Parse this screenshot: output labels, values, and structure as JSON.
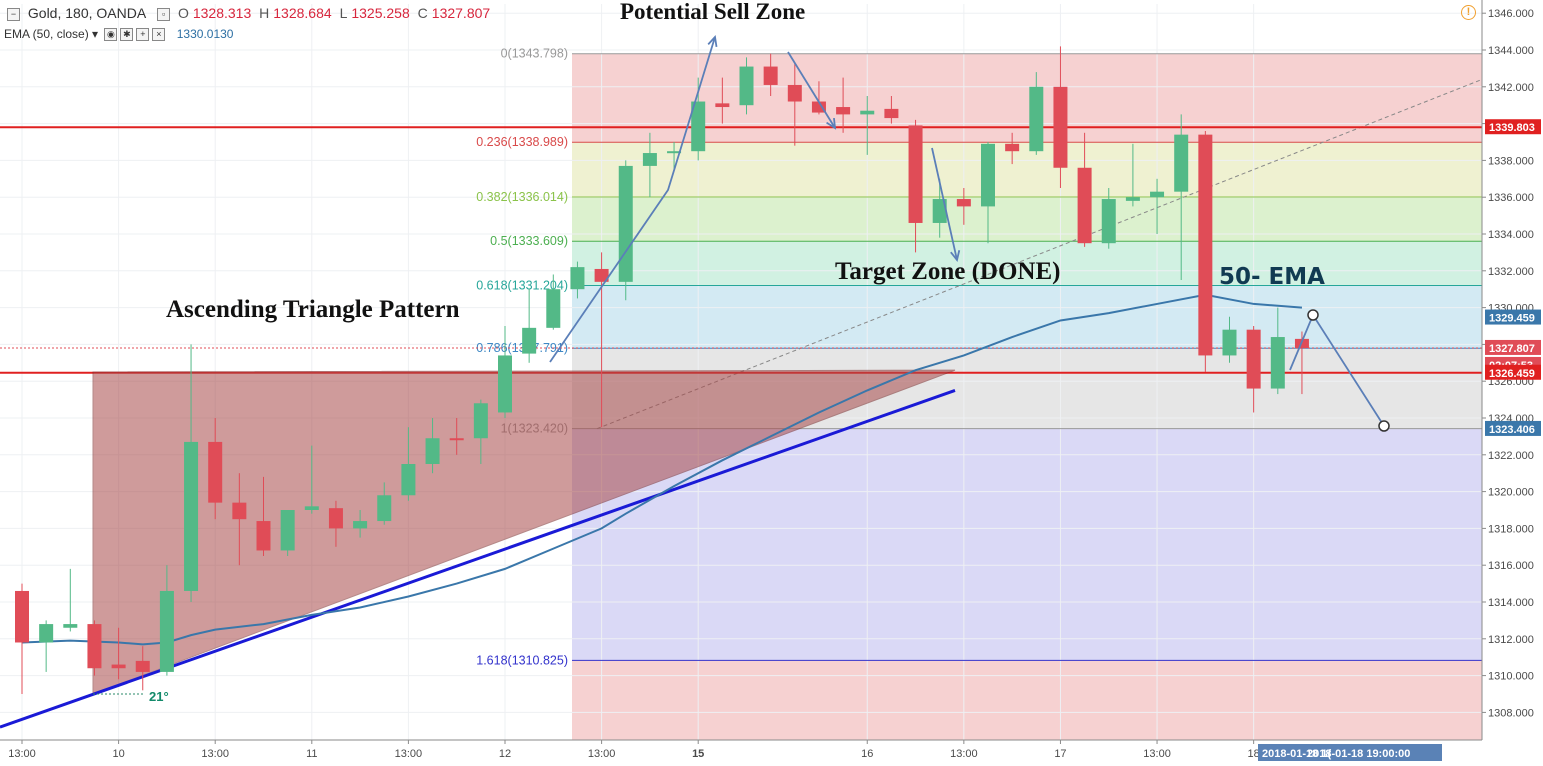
{
  "header": {
    "symbol": "Gold, 180, OANDA",
    "o_label": "O",
    "o": "1328.313",
    "h_label": "H",
    "h": "1328.684",
    "l_label": "L",
    "l": "1325.258",
    "c_label": "C",
    "c": "1327.807",
    "ema_label": "EMA (50, close)",
    "ema_value": "1330.0130"
  },
  "icons": [
    "collapse-icon",
    "settings-icon",
    "eye-icon",
    "plus-icon",
    "close-icon",
    "alert-icon"
  ],
  "colors": {
    "bull": "#53b987",
    "bear": "#e04c57",
    "ema": "#3a77aa",
    "trend": "#1a1ad6",
    "hline": "#e02020",
    "triangle": "#a84a4a",
    "fib_text": "#555555"
  },
  "annotations": {
    "potential_sell": "Potential Sell Zone",
    "target_zone": "Target Zone (DONE)",
    "ema50": "50- EMA",
    "ascending": "Ascending Triangle Pattern",
    "angle": "21°"
  },
  "chart_data": {
    "type": "candlestick",
    "symbol": "Gold, 180, OANDA",
    "ylim": [
      1306.5,
      1346.5
    ],
    "y_ticks": [
      1308,
      1310,
      1312,
      1314,
      1316,
      1318,
      1320,
      1322,
      1324,
      1326,
      1328,
      1330,
      1332,
      1334,
      1336,
      1338,
      1340,
      1342,
      1344,
      1346
    ],
    "x_ticks": [
      {
        "i": 0,
        "label": "13:00"
      },
      {
        "i": 4,
        "label": "10"
      },
      {
        "i": 8,
        "label": "13:00"
      },
      {
        "i": 12,
        "label": "11"
      },
      {
        "i": 16,
        "label": "13:00"
      },
      {
        "i": 20,
        "label": "12"
      },
      {
        "i": 24,
        "label": "13:00"
      },
      {
        "i": 28,
        "label": "15"
      },
      {
        "i": 35,
        "label": "16"
      },
      {
        "i": 39,
        "label": "13:00"
      },
      {
        "i": 43,
        "label": "17"
      },
      {
        "i": 47,
        "label": "13:00"
      },
      {
        "i": 51,
        "label": "18"
      }
    ],
    "time_badges": [
      "2018-01-18 1(",
      "2018-01-18 19:00:00"
    ],
    "candles": [
      {
        "o": 1314.6,
        "h": 1315.0,
        "l": 1309.0,
        "c": 1311.8
      },
      {
        "o": 1311.8,
        "h": 1313.0,
        "l": 1310.2,
        "c": 1312.8
      },
      {
        "o": 1312.6,
        "h": 1315.8,
        "l": 1312.4,
        "c": 1312.8
      },
      {
        "o": 1312.8,
        "h": 1313.0,
        "l": 1310.0,
        "c": 1310.4
      },
      {
        "o": 1310.6,
        "h": 1312.6,
        "l": 1309.8,
        "c": 1310.4
      },
      {
        "o": 1310.8,
        "h": 1311.6,
        "l": 1309.2,
        "c": 1310.2
      },
      {
        "o": 1310.2,
        "h": 1316.0,
        "l": 1310.0,
        "c": 1314.6
      },
      {
        "o": 1314.6,
        "h": 1328.0,
        "l": 1314.0,
        "c": 1322.7
      },
      {
        "o": 1322.7,
        "h": 1324.0,
        "l": 1318.5,
        "c": 1319.4
      },
      {
        "o": 1319.4,
        "h": 1321.0,
        "l": 1316.0,
        "c": 1318.5
      },
      {
        "o": 1318.4,
        "h": 1320.8,
        "l": 1316.5,
        "c": 1316.8
      },
      {
        "o": 1316.8,
        "h": 1319.0,
        "l": 1316.5,
        "c": 1319.0
      },
      {
        "o": 1319.0,
        "h": 1322.5,
        "l": 1318.8,
        "c": 1319.2
      },
      {
        "o": 1319.1,
        "h": 1319.5,
        "l": 1317.0,
        "c": 1318.0
      },
      {
        "o": 1318.0,
        "h": 1319.0,
        "l": 1317.5,
        "c": 1318.4
      },
      {
        "o": 1318.4,
        "h": 1320.5,
        "l": 1318.2,
        "c": 1319.8
      },
      {
        "o": 1319.8,
        "h": 1323.5,
        "l": 1319.5,
        "c": 1321.5
      },
      {
        "o": 1321.5,
        "h": 1324.0,
        "l": 1321.0,
        "c": 1322.9
      },
      {
        "o": 1322.9,
        "h": 1324.0,
        "l": 1322.0,
        "c": 1322.8
      },
      {
        "o": 1322.9,
        "h": 1325.0,
        "l": 1321.5,
        "c": 1324.8
      },
      {
        "o": 1324.3,
        "h": 1329.0,
        "l": 1324.0,
        "c": 1327.4
      },
      {
        "o": 1327.5,
        "h": 1331.0,
        "l": 1327.0,
        "c": 1328.9
      },
      {
        "o": 1328.9,
        "h": 1331.8,
        "l": 1328.8,
        "c": 1331.0
      },
      {
        "o": 1331.0,
        "h": 1332.5,
        "l": 1330.5,
        "c": 1332.2
      },
      {
        "o": 1332.1,
        "h": 1333.0,
        "l": 1323.5,
        "c": 1331.4
      },
      {
        "o": 1331.4,
        "h": 1338.0,
        "l": 1330.4,
        "c": 1337.7
      },
      {
        "o": 1337.7,
        "h": 1339.5,
        "l": 1336.0,
        "c": 1338.4
      },
      {
        "o": 1338.4,
        "h": 1339.0,
        "l": 1337.5,
        "c": 1338.5
      },
      {
        "o": 1338.5,
        "h": 1342.5,
        "l": 1338.0,
        "c": 1341.2
      },
      {
        "o": 1341.1,
        "h": 1342.5,
        "l": 1340.0,
        "c": 1340.9
      },
      {
        "o": 1341.0,
        "h": 1343.6,
        "l": 1340.5,
        "c": 1343.1
      },
      {
        "o": 1343.1,
        "h": 1343.8,
        "l": 1341.5,
        "c": 1342.1
      },
      {
        "o": 1342.1,
        "h": 1343.3,
        "l": 1338.8,
        "c": 1341.2
      },
      {
        "o": 1341.2,
        "h": 1342.3,
        "l": 1340.5,
        "c": 1340.6
      },
      {
        "o": 1340.9,
        "h": 1342.5,
        "l": 1339.5,
        "c": 1340.5
      },
      {
        "o": 1340.5,
        "h": 1341.5,
        "l": 1338.3,
        "c": 1340.7
      },
      {
        "o": 1340.8,
        "h": 1341.5,
        "l": 1340.0,
        "c": 1340.3
      },
      {
        "o": 1339.9,
        "h": 1340.2,
        "l": 1333.0,
        "c": 1334.6
      },
      {
        "o": 1334.6,
        "h": 1337.0,
        "l": 1333.8,
        "c": 1335.9
      },
      {
        "o": 1335.9,
        "h": 1336.5,
        "l": 1334.5,
        "c": 1335.5
      },
      {
        "o": 1335.5,
        "h": 1339.0,
        "l": 1333.5,
        "c": 1338.9
      },
      {
        "o": 1338.9,
        "h": 1339.5,
        "l": 1337.8,
        "c": 1338.5
      },
      {
        "o": 1338.5,
        "h": 1342.8,
        "l": 1338.3,
        "c": 1342.0
      },
      {
        "o": 1342.0,
        "h": 1344.2,
        "l": 1336.5,
        "c": 1337.6
      },
      {
        "o": 1337.6,
        "h": 1339.5,
        "l": 1333.3,
        "c": 1333.5
      },
      {
        "o": 1333.5,
        "h": 1336.5,
        "l": 1333.2,
        "c": 1335.9
      },
      {
        "o": 1335.8,
        "h": 1338.9,
        "l": 1335.5,
        "c": 1336.0
      },
      {
        "o": 1336.0,
        "h": 1337.0,
        "l": 1334.0,
        "c": 1336.3
      },
      {
        "o": 1336.3,
        "h": 1340.5,
        "l": 1331.5,
        "c": 1339.4
      },
      {
        "o": 1339.4,
        "h": 1339.6,
        "l": 1326.5,
        "c": 1327.4
      },
      {
        "o": 1327.4,
        "h": 1329.5,
        "l": 1327.0,
        "c": 1328.8
      },
      {
        "o": 1328.8,
        "h": 1329.0,
        "l": 1324.3,
        "c": 1325.6
      },
      {
        "o": 1325.6,
        "h": 1330.0,
        "l": 1325.3,
        "c": 1328.4
      },
      {
        "o": 1328.3,
        "h": 1328.7,
        "l": 1325.3,
        "c": 1327.8
      }
    ],
    "ema50": [
      {
        "i": 0,
        "v": 1311.8
      },
      {
        "i": 2,
        "v": 1311.9
      },
      {
        "i": 4,
        "v": 1311.8
      },
      {
        "i": 5,
        "v": 1311.7
      },
      {
        "i": 6,
        "v": 1311.8
      },
      {
        "i": 7,
        "v": 1312.2
      },
      {
        "i": 8,
        "v": 1312.5
      },
      {
        "i": 10,
        "v": 1312.8
      },
      {
        "i": 12,
        "v": 1313.3
      },
      {
        "i": 14,
        "v": 1313.7
      },
      {
        "i": 16,
        "v": 1314.3
      },
      {
        "i": 18,
        "v": 1315.0
      },
      {
        "i": 20,
        "v": 1315.8
      },
      {
        "i": 22,
        "v": 1316.9
      },
      {
        "i": 24,
        "v": 1318.0
      },
      {
        "i": 25,
        "v": 1318.8
      },
      {
        "i": 27,
        "v": 1320.3
      },
      {
        "i": 29,
        "v": 1321.7
      },
      {
        "i": 31,
        "v": 1323.0
      },
      {
        "i": 33,
        "v": 1324.3
      },
      {
        "i": 35,
        "v": 1325.5
      },
      {
        "i": 37,
        "v": 1326.6
      },
      {
        "i": 39,
        "v": 1327.4
      },
      {
        "i": 41,
        "v": 1328.4
      },
      {
        "i": 43,
        "v": 1329.3
      },
      {
        "i": 45,
        "v": 1329.7
      },
      {
        "i": 47,
        "v": 1330.2
      },
      {
        "i": 49,
        "v": 1330.7
      },
      {
        "i": 51,
        "v": 1330.2
      },
      {
        "i": 53,
        "v": 1330.0
      }
    ],
    "fib_levels": [
      {
        "ratio": "0",
        "value": "1343.798",
        "y": 1343.798,
        "color": "#999999"
      },
      {
        "ratio": "0.236",
        "value": "1338.989",
        "y": 1338.989,
        "color": "#d94a4a"
      },
      {
        "ratio": "0.382",
        "value": "1336.014",
        "y": 1336.014,
        "color": "#8bc34a"
      },
      {
        "ratio": "0.5",
        "value": "1333.609",
        "y": 1333.609,
        "color": "#4caf50"
      },
      {
        "ratio": "0.618",
        "value": "1331.204",
        "y": 1331.204,
        "color": "#26a69a"
      },
      {
        "ratio": "0.786",
        "value": "1327.791",
        "y": 1327.791,
        "color": "#3d87c4"
      },
      {
        "ratio": "1",
        "value": "1323.420",
        "y": 1323.42,
        "color": "#999999"
      },
      {
        "ratio": "1.618",
        "value": "1310.825",
        "y": 1310.825,
        "color": "#3333cc"
      }
    ],
    "horizontal_lines": [
      1339.803,
      1326.459
    ],
    "price_labels": [
      {
        "text": "1339.803",
        "y": 1339.803,
        "bg": "#e02020"
      },
      {
        "text": "1329.459",
        "y": 1329.459,
        "bg": "#3a77aa"
      },
      {
        "text": "1327.807",
        "y": 1327.807,
        "bg": "#e04c57"
      },
      {
        "text": "02:07:53",
        "y": 1326.95,
        "bg": "#e04c57"
      },
      {
        "text": "1326.459",
        "y": 1326.459,
        "bg": "#e02020"
      },
      {
        "text": "1323.406",
        "y": 1323.406,
        "bg": "#3a77aa"
      }
    ]
  }
}
